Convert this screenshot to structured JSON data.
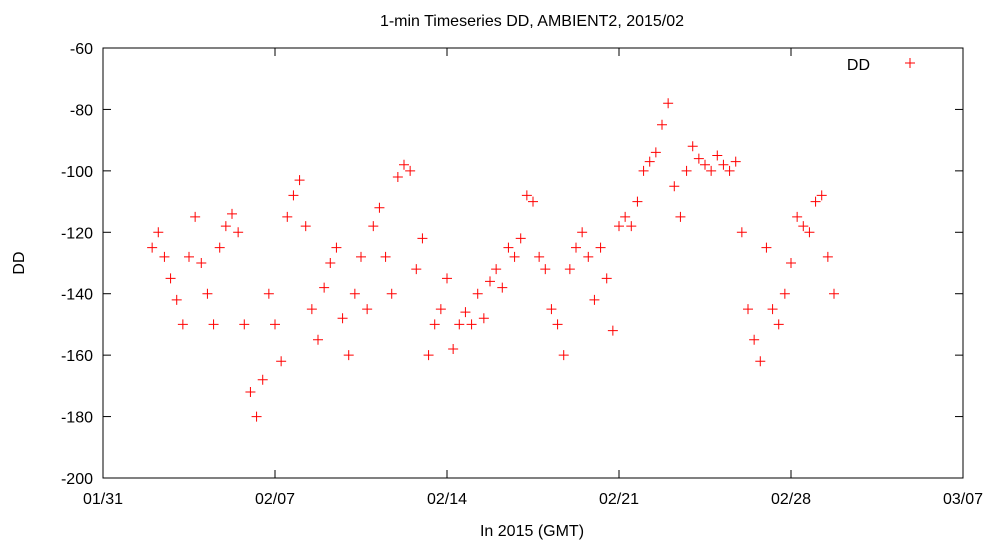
{
  "chart_data": {
    "type": "scatter",
    "title": "1-min Timeseries DD, AMBIENT2, 2015/02",
    "xlabel": "In 2015 (GMT)",
    "ylabel": "DD",
    "x_range": [
      "2015-01-31",
      "2015-03-07"
    ],
    "ylim": [
      -200,
      -60
    ],
    "x_ticks": [
      "01/31",
      "02/07",
      "02/14",
      "02/21",
      "02/28",
      "03/07"
    ],
    "y_ticks": [
      "-60",
      "-80",
      "-100",
      "-120",
      "-140",
      "-160",
      "-180",
      "-200"
    ],
    "grid": false,
    "legend": {
      "position": "top-right",
      "entries": [
        "DD"
      ]
    },
    "marker": "+",
    "series": [
      {
        "name": "DD",
        "color": "#ff0000",
        "points": [
          [
            "2015-02-02T00:00",
            -125
          ],
          [
            "2015-02-02T06:00",
            -120
          ],
          [
            "2015-02-02T12:00",
            -128
          ],
          [
            "2015-02-02T18:00",
            -135
          ],
          [
            "2015-02-03T00:00",
            -142
          ],
          [
            "2015-02-03T06:00",
            -150
          ],
          [
            "2015-02-03T12:00",
            -128
          ],
          [
            "2015-02-03T18:00",
            -115
          ],
          [
            "2015-02-04T00:00",
            -130
          ],
          [
            "2015-02-04T06:00",
            -140
          ],
          [
            "2015-02-04T12:00",
            -150
          ],
          [
            "2015-02-04T18:00",
            -125
          ],
          [
            "2015-02-05T00:00",
            -118
          ],
          [
            "2015-02-05T06:00",
            -114
          ],
          [
            "2015-02-05T12:00",
            -120
          ],
          [
            "2015-02-05T18:00",
            -150
          ],
          [
            "2015-02-06T00:00",
            -172
          ],
          [
            "2015-02-06T06:00",
            -180
          ],
          [
            "2015-02-06T12:00",
            -168
          ],
          [
            "2015-02-06T18:00",
            -140
          ],
          [
            "2015-02-07T00:00",
            -150
          ],
          [
            "2015-02-07T06:00",
            -162
          ],
          [
            "2015-02-07T12:00",
            -115
          ],
          [
            "2015-02-07T18:00",
            -108
          ],
          [
            "2015-02-08T00:00",
            -103
          ],
          [
            "2015-02-08T06:00",
            -118
          ],
          [
            "2015-02-08T12:00",
            -145
          ],
          [
            "2015-02-08T18:00",
            -155
          ],
          [
            "2015-02-09T00:00",
            -138
          ],
          [
            "2015-02-09T06:00",
            -130
          ],
          [
            "2015-02-09T12:00",
            -125
          ],
          [
            "2015-02-09T18:00",
            -148
          ],
          [
            "2015-02-10T00:00",
            -160
          ],
          [
            "2015-02-10T06:00",
            -140
          ],
          [
            "2015-02-10T12:00",
            -128
          ],
          [
            "2015-02-10T18:00",
            -145
          ],
          [
            "2015-02-11T00:00",
            -118
          ],
          [
            "2015-02-11T06:00",
            -112
          ],
          [
            "2015-02-11T12:00",
            -128
          ],
          [
            "2015-02-11T18:00",
            -140
          ],
          [
            "2015-02-12T00:00",
            -102
          ],
          [
            "2015-02-12T06:00",
            -98
          ],
          [
            "2015-02-12T12:00",
            -100
          ],
          [
            "2015-02-12T18:00",
            -132
          ],
          [
            "2015-02-13T00:00",
            -122
          ],
          [
            "2015-02-13T06:00",
            -160
          ],
          [
            "2015-02-13T12:00",
            -150
          ],
          [
            "2015-02-13T18:00",
            -145
          ],
          [
            "2015-02-14T00:00",
            -135
          ],
          [
            "2015-02-14T06:00",
            -158
          ],
          [
            "2015-02-14T12:00",
            -150
          ],
          [
            "2015-02-14T18:00",
            -146
          ],
          [
            "2015-02-15T00:00",
            -150
          ],
          [
            "2015-02-15T06:00",
            -140
          ],
          [
            "2015-02-15T12:00",
            -148
          ],
          [
            "2015-02-15T18:00",
            -136
          ],
          [
            "2015-02-16T00:00",
            -132
          ],
          [
            "2015-02-16T06:00",
            -138
          ],
          [
            "2015-02-16T12:00",
            -125
          ],
          [
            "2015-02-16T18:00",
            -128
          ],
          [
            "2015-02-17T00:00",
            -122
          ],
          [
            "2015-02-17T06:00",
            -108
          ],
          [
            "2015-02-17T12:00",
            -110
          ],
          [
            "2015-02-17T18:00",
            -128
          ],
          [
            "2015-02-18T00:00",
            -132
          ],
          [
            "2015-02-18T06:00",
            -145
          ],
          [
            "2015-02-18T12:00",
            -150
          ],
          [
            "2015-02-18T18:00",
            -160
          ],
          [
            "2015-02-19T00:00",
            -132
          ],
          [
            "2015-02-19T06:00",
            -125
          ],
          [
            "2015-02-19T12:00",
            -120
          ],
          [
            "2015-02-19T18:00",
            -128
          ],
          [
            "2015-02-20T00:00",
            -142
          ],
          [
            "2015-02-20T06:00",
            -125
          ],
          [
            "2015-02-20T12:00",
            -135
          ],
          [
            "2015-02-20T18:00",
            -152
          ],
          [
            "2015-02-21T00:00",
            -118
          ],
          [
            "2015-02-21T06:00",
            -115
          ],
          [
            "2015-02-21T12:00",
            -118
          ],
          [
            "2015-02-21T18:00",
            -110
          ],
          [
            "2015-02-22T00:00",
            -100
          ],
          [
            "2015-02-22T06:00",
            -97
          ],
          [
            "2015-02-22T12:00",
            -94
          ],
          [
            "2015-02-22T18:00",
            -85
          ],
          [
            "2015-02-23T00:00",
            -78
          ],
          [
            "2015-02-23T06:00",
            -105
          ],
          [
            "2015-02-23T12:00",
            -115
          ],
          [
            "2015-02-23T18:00",
            -100
          ],
          [
            "2015-02-24T00:00",
            -92
          ],
          [
            "2015-02-24T06:00",
            -96
          ],
          [
            "2015-02-24T12:00",
            -98
          ],
          [
            "2015-02-24T18:00",
            -100
          ],
          [
            "2015-02-25T00:00",
            -95
          ],
          [
            "2015-02-25T06:00",
            -98
          ],
          [
            "2015-02-25T12:00",
            -100
          ],
          [
            "2015-02-25T18:00",
            -97
          ],
          [
            "2015-02-26T00:00",
            -120
          ],
          [
            "2015-02-26T06:00",
            -145
          ],
          [
            "2015-02-26T12:00",
            -155
          ],
          [
            "2015-02-26T18:00",
            -162
          ],
          [
            "2015-02-27T00:00",
            -125
          ],
          [
            "2015-02-27T06:00",
            -145
          ],
          [
            "2015-02-27T12:00",
            -150
          ],
          [
            "2015-02-27T18:00",
            -140
          ],
          [
            "2015-02-28T00:00",
            -130
          ],
          [
            "2015-02-28T06:00",
            -115
          ],
          [
            "2015-02-28T12:00",
            -118
          ],
          [
            "2015-02-28T18:00",
            -120
          ],
          [
            "2015-03-01T00:00",
            -110
          ],
          [
            "2015-03-01T06:00",
            -108
          ],
          [
            "2015-03-01T12:00",
            -128
          ],
          [
            "2015-03-01T18:00",
            -140
          ]
        ]
      }
    ]
  }
}
